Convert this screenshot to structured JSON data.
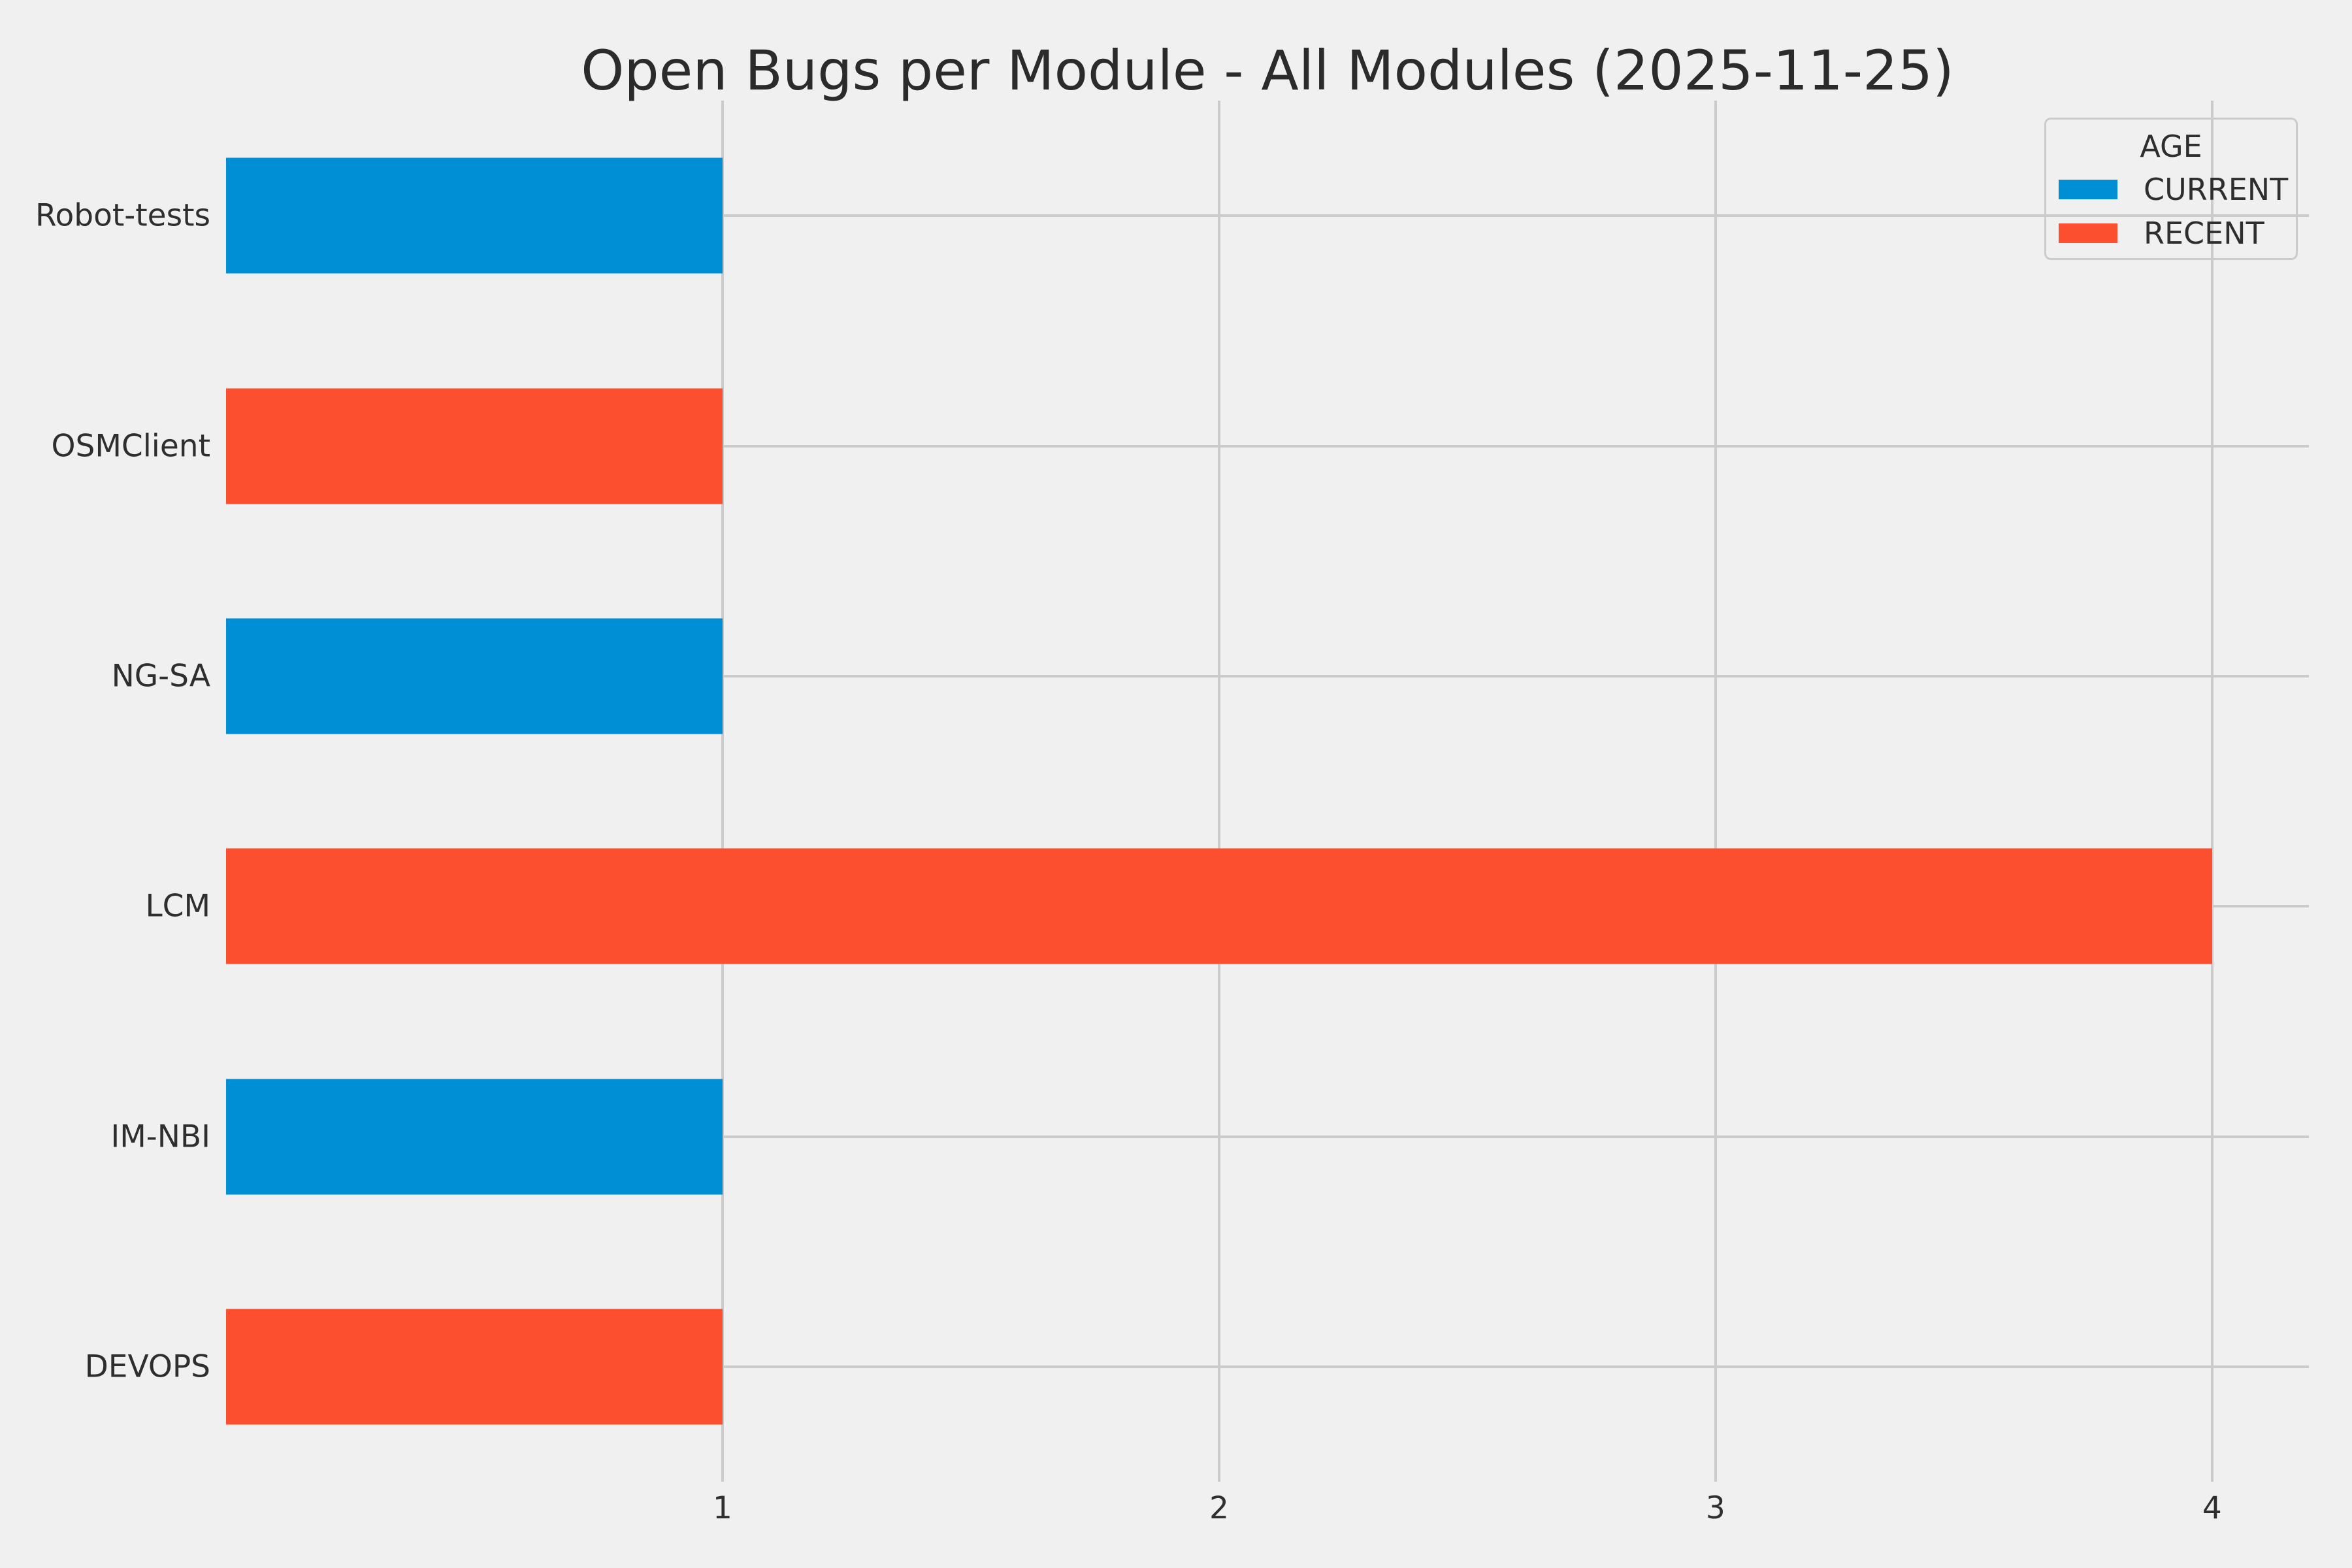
{
  "chart_data": {
    "type": "bar",
    "orientation": "horizontal",
    "title": "Open Bugs per Module - All Modules (2025-11-25)",
    "categories": [
      "Robot-tests",
      "OSMClient",
      "NG-SA",
      "LCM",
      "IM-NBI",
      "DEVOPS"
    ],
    "bars": [
      {
        "category": "Robot-tests",
        "value": 1,
        "group": "CURRENT"
      },
      {
        "category": "OSMClient",
        "value": 1,
        "group": "RECENT"
      },
      {
        "category": "NG-SA",
        "value": 1,
        "group": "CURRENT"
      },
      {
        "category": "LCM",
        "value": 4,
        "group": "RECENT"
      },
      {
        "category": "IM-NBI",
        "value": 1,
        "group": "CURRENT"
      },
      {
        "category": "DEVOPS",
        "value": 1,
        "group": "RECENT"
      }
    ],
    "series": [
      {
        "name": "CURRENT",
        "color": "#008fd5",
        "values": [
          1,
          null,
          1,
          null,
          1,
          null
        ]
      },
      {
        "name": "RECENT",
        "color": "#fc4f30",
        "values": [
          null,
          1,
          null,
          4,
          null,
          1
        ]
      }
    ],
    "x_ticks": [
      1,
      2,
      3,
      4
    ],
    "xlim": [
      0,
      4.195
    ],
    "xlabel": "",
    "ylabel": "",
    "grid": true,
    "legend": {
      "title": "AGE",
      "position": "upper-right",
      "entries": [
        {
          "label": "CURRENT",
          "color": "#008fd5"
        },
        {
          "label": "RECENT",
          "color": "#fc4f30"
        }
      ]
    },
    "colors": {
      "background": "#f0f0f0",
      "grid": "#cbcbcb",
      "text": "#2e2e2e",
      "blue": "#008fd5",
      "red": "#fc4f30"
    }
  }
}
